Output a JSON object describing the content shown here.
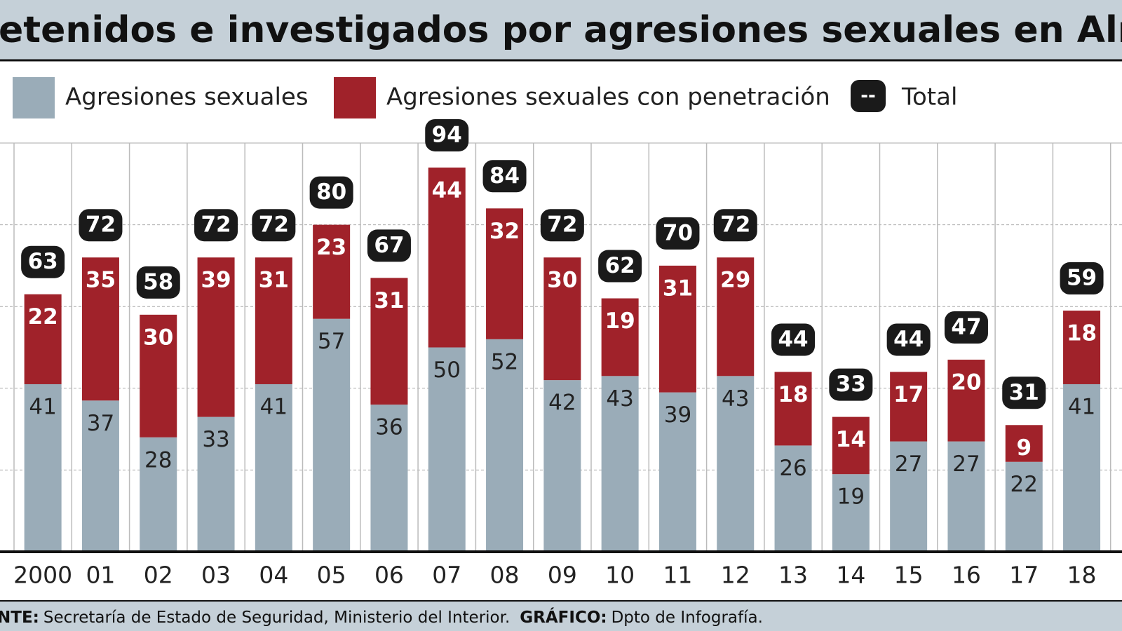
{
  "chart_data": {
    "type": "stacked_bar",
    "title": "etenidos e investigados por agresiones sexuales en Almería",
    "categories": [
      "2000",
      "01",
      "02",
      "03",
      "04",
      "05",
      "06",
      "07",
      "08",
      "09",
      "10",
      "11",
      "12",
      "13",
      "14",
      "15",
      "16",
      "17",
      "18"
    ],
    "series": [
      {
        "name": "Agresiones sexuales",
        "color": "#9aacb8",
        "values": [
          41,
          37,
          28,
          33,
          41,
          57,
          36,
          50,
          52,
          42,
          43,
          39,
          43,
          26,
          19,
          27,
          27,
          22,
          41
        ]
      },
      {
        "name": "Agresiones sexuales con penetración",
        "color": "#a0222a",
        "values": [
          22,
          35,
          30,
          39,
          31,
          23,
          31,
          44,
          32,
          30,
          19,
          31,
          29,
          18,
          14,
          17,
          20,
          9,
          18
        ]
      }
    ],
    "total_name": "Total",
    "total_marker": "--",
    "totals": [
      63,
      72,
      58,
      72,
      72,
      80,
      67,
      94,
      84,
      72,
      62,
      70,
      72,
      44,
      33,
      44,
      47,
      31,
      59
    ],
    "ylim": [
      0,
      100
    ],
    "yticks": [
      0,
      20,
      40,
      60,
      80,
      100
    ],
    "grid": true,
    "source_label": "NTE:",
    "source": "Secretaría de Estado de Seguridad, Ministerio del Interior.",
    "credit_label": "GRÁFICO:",
    "credit": "Dpto de Infografía."
  }
}
